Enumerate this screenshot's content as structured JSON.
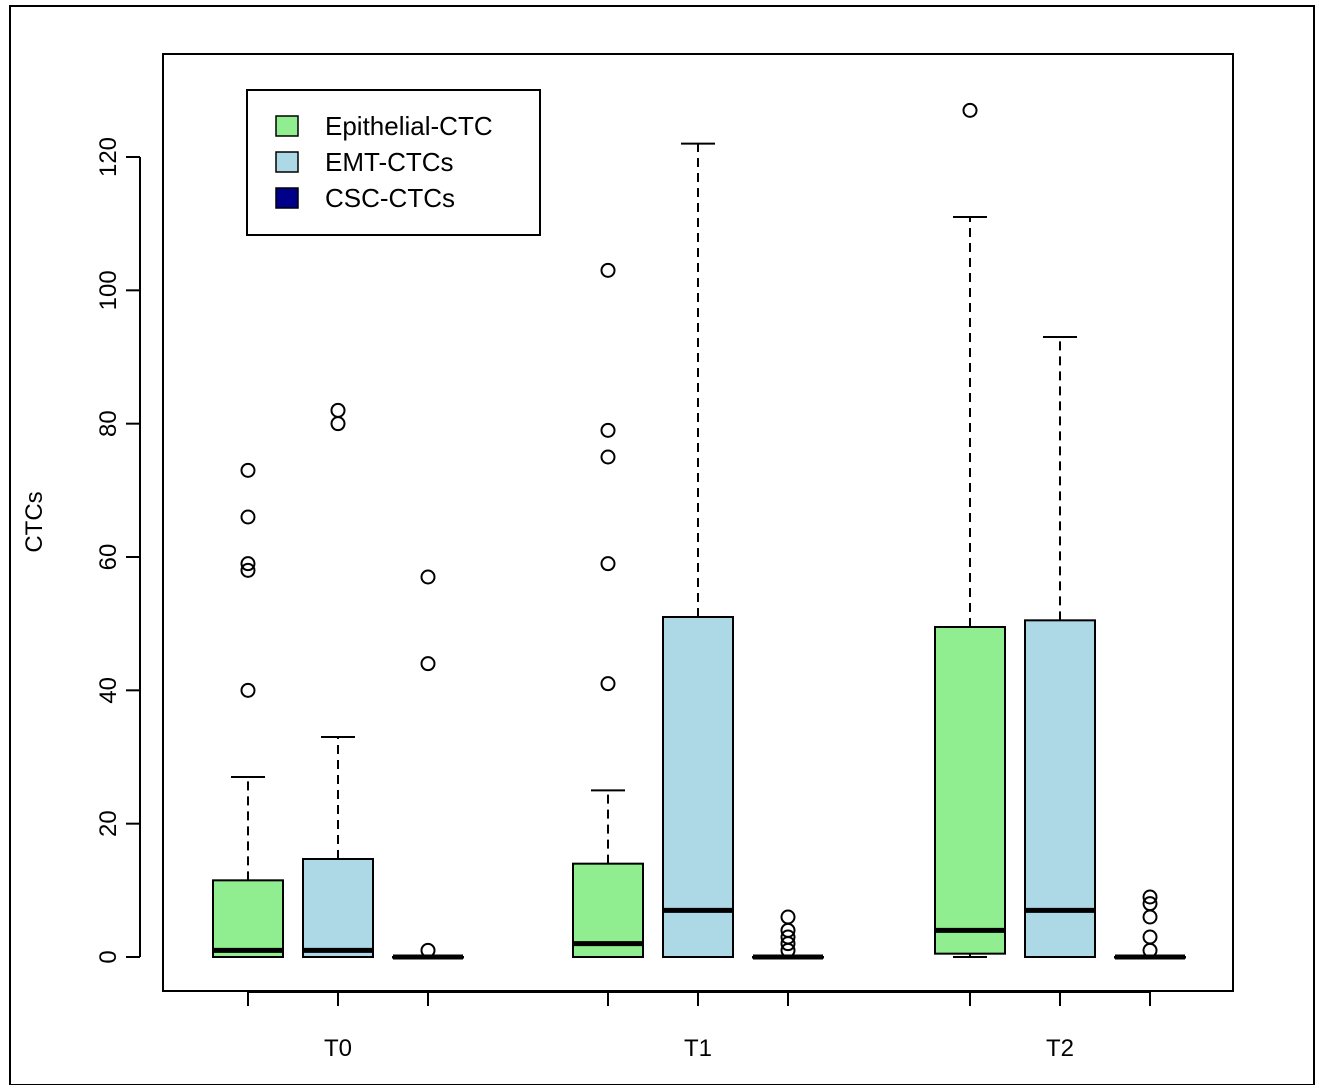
{
  "chart_data": {
    "type": "boxplot",
    "title": "",
    "xlabel": "",
    "ylabel": "CTCs",
    "ylim": [
      -5,
      135
    ],
    "y_ticks": [
      0,
      20,
      40,
      60,
      80,
      100,
      120
    ],
    "groups": [
      "T0",
      "T1",
      "T2"
    ],
    "legend": {
      "position": "top-left",
      "entries": [
        {
          "label": "Epithelial-CTC",
          "color": "#90EE90"
        },
        {
          "label": "EMT-CTCs",
          "color": "#ADD8E6"
        },
        {
          "label": "CSC-CTCs",
          "color": "#00008B"
        }
      ]
    },
    "series": [
      {
        "name": "Epithelial-CTC",
        "color": "#90EE90",
        "boxes": [
          {
            "group": "T0",
            "min": 0,
            "q1": 0,
            "median": 1,
            "q3": 11.5,
            "max": 27,
            "outliers": [
              40,
              58,
              59,
              66,
              73
            ]
          },
          {
            "group": "T1",
            "min": 0,
            "q1": 0,
            "median": 2,
            "q3": 14,
            "max": 25,
            "outliers": [
              41,
              59,
              75,
              79,
              103
            ]
          },
          {
            "group": "T2",
            "min": 0,
            "q1": 0.5,
            "median": 4,
            "q3": 49.5,
            "max": 111,
            "outliers": [
              127
            ]
          }
        ]
      },
      {
        "name": "EMT-CTCs",
        "color": "#ADD8E6",
        "boxes": [
          {
            "group": "T0",
            "min": 0,
            "q1": 0,
            "median": 1,
            "q3": 14.7,
            "max": 33,
            "outliers": [
              80,
              82
            ]
          },
          {
            "group": "T1",
            "min": 0,
            "q1": 0,
            "median": 7,
            "q3": 51,
            "max": 122,
            "outliers": []
          },
          {
            "group": "T2",
            "min": 0,
            "q1": 0,
            "median": 7,
            "q3": 50.5,
            "max": 93,
            "outliers": []
          }
        ]
      },
      {
        "name": "CSC-CTCs",
        "color": "#00008B",
        "boxes": [
          {
            "group": "T0",
            "min": 0,
            "q1": 0,
            "median": 0,
            "q3": 0,
            "max": 0,
            "outliers": [
              1,
              44,
              57
            ]
          },
          {
            "group": "T1",
            "min": 0,
            "q1": 0,
            "median": 0,
            "q3": 0,
            "max": 0,
            "outliers": [
              1,
              2,
              3,
              4,
              6
            ]
          },
          {
            "group": "T2",
            "min": 0,
            "q1": 0,
            "median": 0,
            "q3": 0,
            "max": 0,
            "outliers": [
              1,
              3,
              6,
              8,
              9
            ]
          }
        ]
      }
    ]
  }
}
